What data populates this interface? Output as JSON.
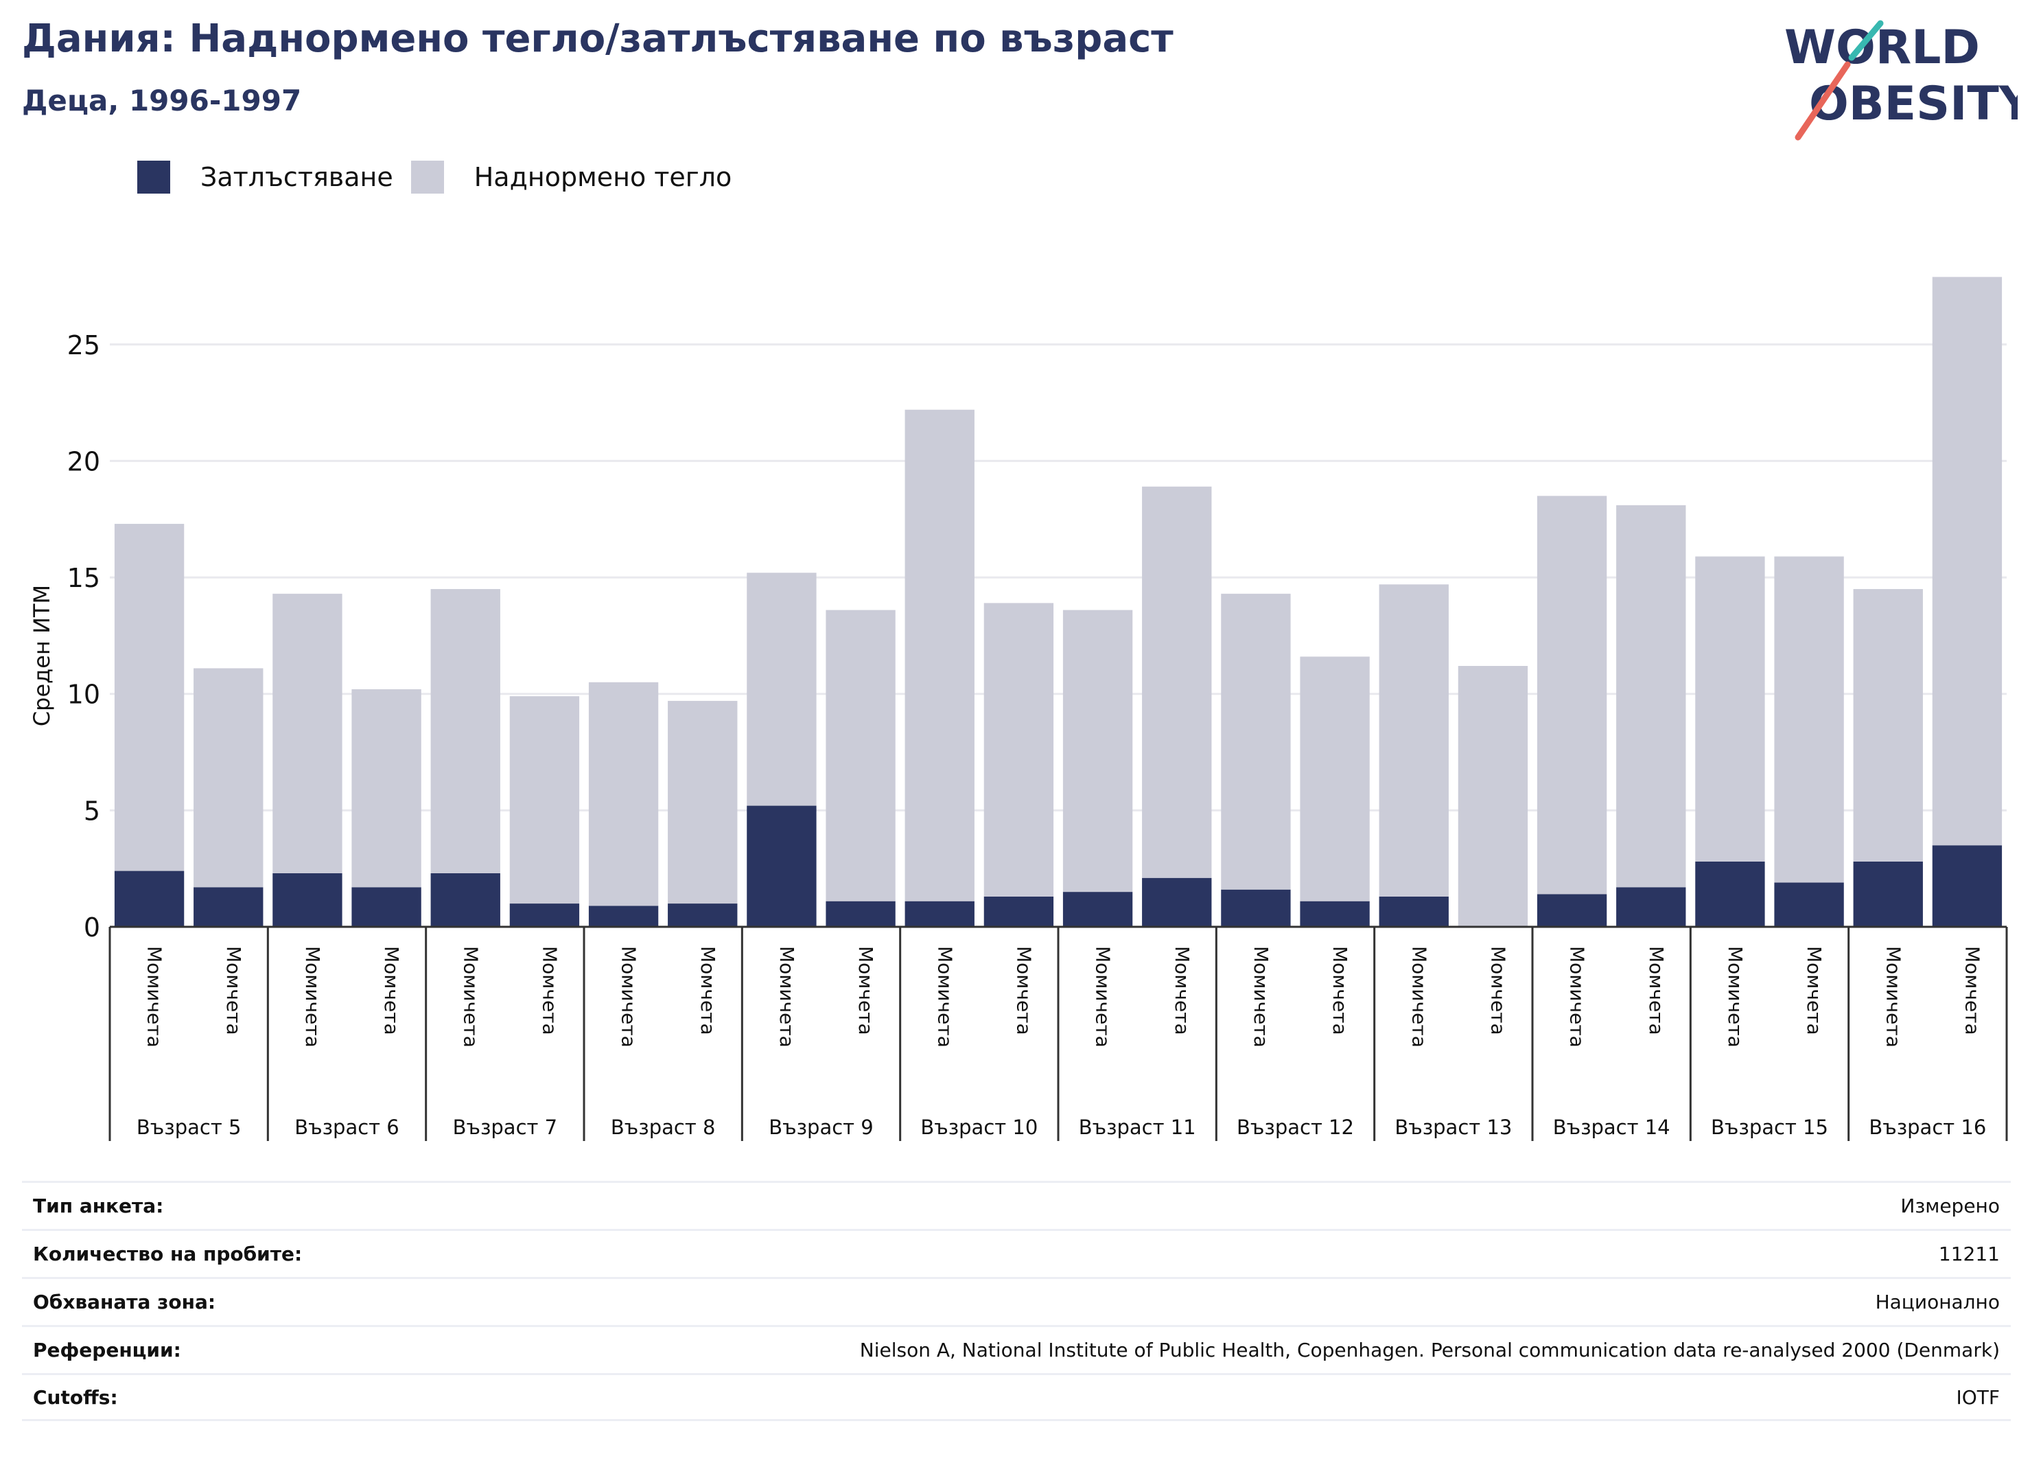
{
  "header": {
    "title": "Дания: Наднормено тегло/затлъстяване по възраст",
    "subtitle": "Деца, 1996-1997"
  },
  "logo": {
    "line1": "WORLD",
    "line2": "OBESITY"
  },
  "colors": {
    "obesity": "#2a3561",
    "overweight": "#cbccd8",
    "accent_teal": "#38b8b0",
    "accent_red": "#e8665a"
  },
  "legend": [
    {
      "label": "Затлъстяване",
      "color": "#2a3561"
    },
    {
      "label": "Наднормено тегло",
      "color": "#cbccd8"
    }
  ],
  "chart_data": {
    "type": "bar",
    "stacked": true,
    "ylabel": "Среден ИТМ",
    "ylim": [
      0,
      28
    ],
    "yticks": [
      0,
      5,
      10,
      15,
      20,
      25
    ],
    "grid": true,
    "groups": [
      "Възраст 5",
      "Възраст 6",
      "Възраст 7",
      "Възраст 8",
      "Възраст 9",
      "Възраст 10",
      "Възраст 11",
      "Възраст 12",
      "Възраст 13",
      "Възраст 14",
      "Възраст 15",
      "Възраст 16"
    ],
    "categories": [
      "Момичета",
      "Момчета",
      "Момичета",
      "Момчета",
      "Момичета",
      "Момчета",
      "Момичета",
      "Момчета",
      "Момичета",
      "Момчета",
      "Момичета",
      "Момчета",
      "Момичета",
      "Момчета",
      "Момичета",
      "Момчета",
      "Момичета",
      "Момчета",
      "Момичета",
      "Момчета",
      "Момичета",
      "Момчета",
      "Момичета",
      "Момчета"
    ],
    "series": [
      {
        "name": "Затлъстяване",
        "values": [
          2.4,
          1.7,
          2.3,
          1.7,
          2.3,
          1.0,
          0.9,
          1.0,
          5.2,
          1.1,
          1.1,
          1.3,
          1.5,
          2.1,
          1.6,
          1.1,
          1.3,
          0.0,
          1.4,
          1.7,
          2.8,
          1.9,
          2.8,
          3.5
        ]
      },
      {
        "name": "Наднормено тегло",
        "values": [
          14.9,
          9.4,
          12.0,
          8.5,
          12.2,
          8.9,
          9.6,
          8.7,
          10.0,
          12.5,
          21.1,
          12.6,
          12.1,
          16.8,
          12.7,
          10.5,
          13.4,
          11.2,
          17.1,
          16.4,
          13.1,
          14.0,
          11.7,
          24.4
        ]
      }
    ]
  },
  "meta": [
    {
      "key": "Тип анкета:",
      "value": "Измерено"
    },
    {
      "key": "Количество на пробите:",
      "value": "11211"
    },
    {
      "key": "Обхваната зона:",
      "value": "Национално"
    },
    {
      "key": "Референции:",
      "value": "Nielson A, National Institute of Public Health, Copenhagen. Personal communication data re-analysed 2000 (Denmark)"
    },
    {
      "key": "Cutoffs:",
      "value": "IOTF"
    }
  ]
}
